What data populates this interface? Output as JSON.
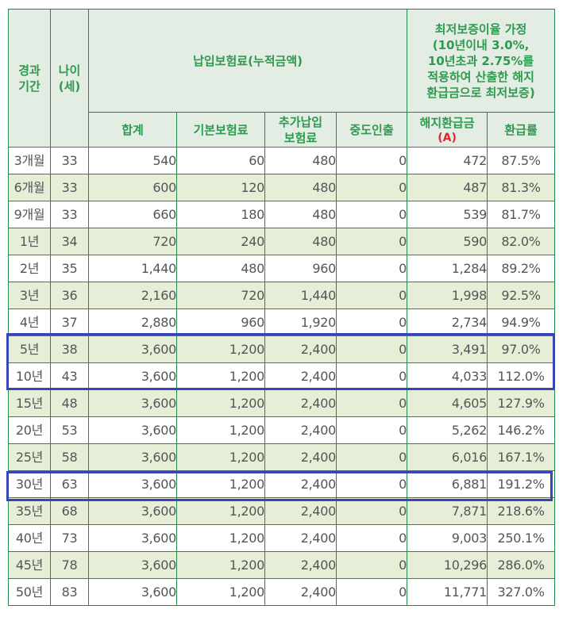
{
  "table": {
    "headers": {
      "period": "경과\n기간",
      "period_l1": "경과",
      "period_l2": "기간",
      "age_l1": "나이",
      "age_l2": "(세)",
      "premium_group": "납입보험료(누적금액)",
      "guarantee_group_lines": [
        "최저보증이율 가정",
        "(10년이내 3.0%,",
        "10년초과 2.75%를",
        "적용하여 산출한 해지",
        "환급금으로 최저보증)"
      ],
      "total": "합계",
      "base_premium": "기본보험료",
      "extra_premium_l1": "추가납입",
      "extra_premium_l2": "보험료",
      "withdrawal": "중도인출",
      "surrender_l1": "해지환급금",
      "surrender_l2": "(A)",
      "refund_rate": "환급률"
    },
    "rows": [
      {
        "period": "3개월",
        "age": "33",
        "total": "540",
        "base": "60",
        "extra": "480",
        "withdrawal": "0",
        "surrender": "472",
        "rate": "87.5%"
      },
      {
        "period": "6개월",
        "age": "33",
        "total": "600",
        "base": "120",
        "extra": "480",
        "withdrawal": "0",
        "surrender": "487",
        "rate": "81.3%"
      },
      {
        "period": "9개월",
        "age": "33",
        "total": "660",
        "base": "180",
        "extra": "480",
        "withdrawal": "0",
        "surrender": "539",
        "rate": "81.7%"
      },
      {
        "period": "1년",
        "age": "34",
        "total": "720",
        "base": "240",
        "extra": "480",
        "withdrawal": "0",
        "surrender": "590",
        "rate": "82.0%"
      },
      {
        "period": "2년",
        "age": "35",
        "total": "1,440",
        "base": "480",
        "extra": "960",
        "withdrawal": "0",
        "surrender": "1,284",
        "rate": "89.2%"
      },
      {
        "period": "3년",
        "age": "36",
        "total": "2,160",
        "base": "720",
        "extra": "1,440",
        "withdrawal": "0",
        "surrender": "1,998",
        "rate": "92.5%"
      },
      {
        "period": "4년",
        "age": "37",
        "total": "2,880",
        "base": "960",
        "extra": "1,920",
        "withdrawal": "0",
        "surrender": "2,734",
        "rate": "94.9%"
      },
      {
        "period": "5년",
        "age": "38",
        "total": "3,600",
        "base": "1,200",
        "extra": "2,400",
        "withdrawal": "0",
        "surrender": "3,491",
        "rate": "97.0%"
      },
      {
        "period": "10년",
        "age": "43",
        "total": "3,600",
        "base": "1,200",
        "extra": "2,400",
        "withdrawal": "0",
        "surrender": "4,033",
        "rate": "112.0%"
      },
      {
        "period": "15년",
        "age": "48",
        "total": "3,600",
        "base": "1,200",
        "extra": "2,400",
        "withdrawal": "0",
        "surrender": "4,605",
        "rate": "127.9%"
      },
      {
        "period": "20년",
        "age": "53",
        "total": "3,600",
        "base": "1,200",
        "extra": "2,400",
        "withdrawal": "0",
        "surrender": "5,262",
        "rate": "146.2%"
      },
      {
        "period": "25년",
        "age": "58",
        "total": "3,600",
        "base": "1,200",
        "extra": "2,400",
        "withdrawal": "0",
        "surrender": "6,016",
        "rate": "167.1%"
      },
      {
        "period": "30년",
        "age": "63",
        "total": "3,600",
        "base": "1,200",
        "extra": "2,400",
        "withdrawal": "0",
        "surrender": "6,881",
        "rate": "191.2%"
      },
      {
        "period": "35년",
        "age": "68",
        "total": "3,600",
        "base": "1,200",
        "extra": "2,400",
        "withdrawal": "0",
        "surrender": "7,871",
        "rate": "218.6%"
      },
      {
        "period": "40년",
        "age": "73",
        "total": "3,600",
        "base": "1,200",
        "extra": "2,400",
        "withdrawal": "0",
        "surrender": "9,003",
        "rate": "250.1%"
      },
      {
        "period": "45년",
        "age": "78",
        "total": "3,600",
        "base": "1,200",
        "extra": "2,400",
        "withdrawal": "0",
        "surrender": "10,296",
        "rate": "286.0%"
      },
      {
        "period": "50년",
        "age": "83",
        "total": "3,600",
        "base": "1,200",
        "extra": "2,400",
        "withdrawal": "0",
        "surrender": "11,771",
        "rate": "327.0%"
      }
    ],
    "highlights": [
      {
        "label": "5년-10년",
        "rows": [
          7,
          8
        ]
      },
      {
        "label": "30년",
        "rows": [
          12
        ]
      }
    ]
  },
  "colors": {
    "grid_line": "#1f8a4c",
    "header_bg": "#e3ede3",
    "header_text": "#2e9a4f",
    "alt_row_bg": "#e6eed8",
    "highlight_border": "#3a44b4",
    "red_label": "#e0262a"
  }
}
